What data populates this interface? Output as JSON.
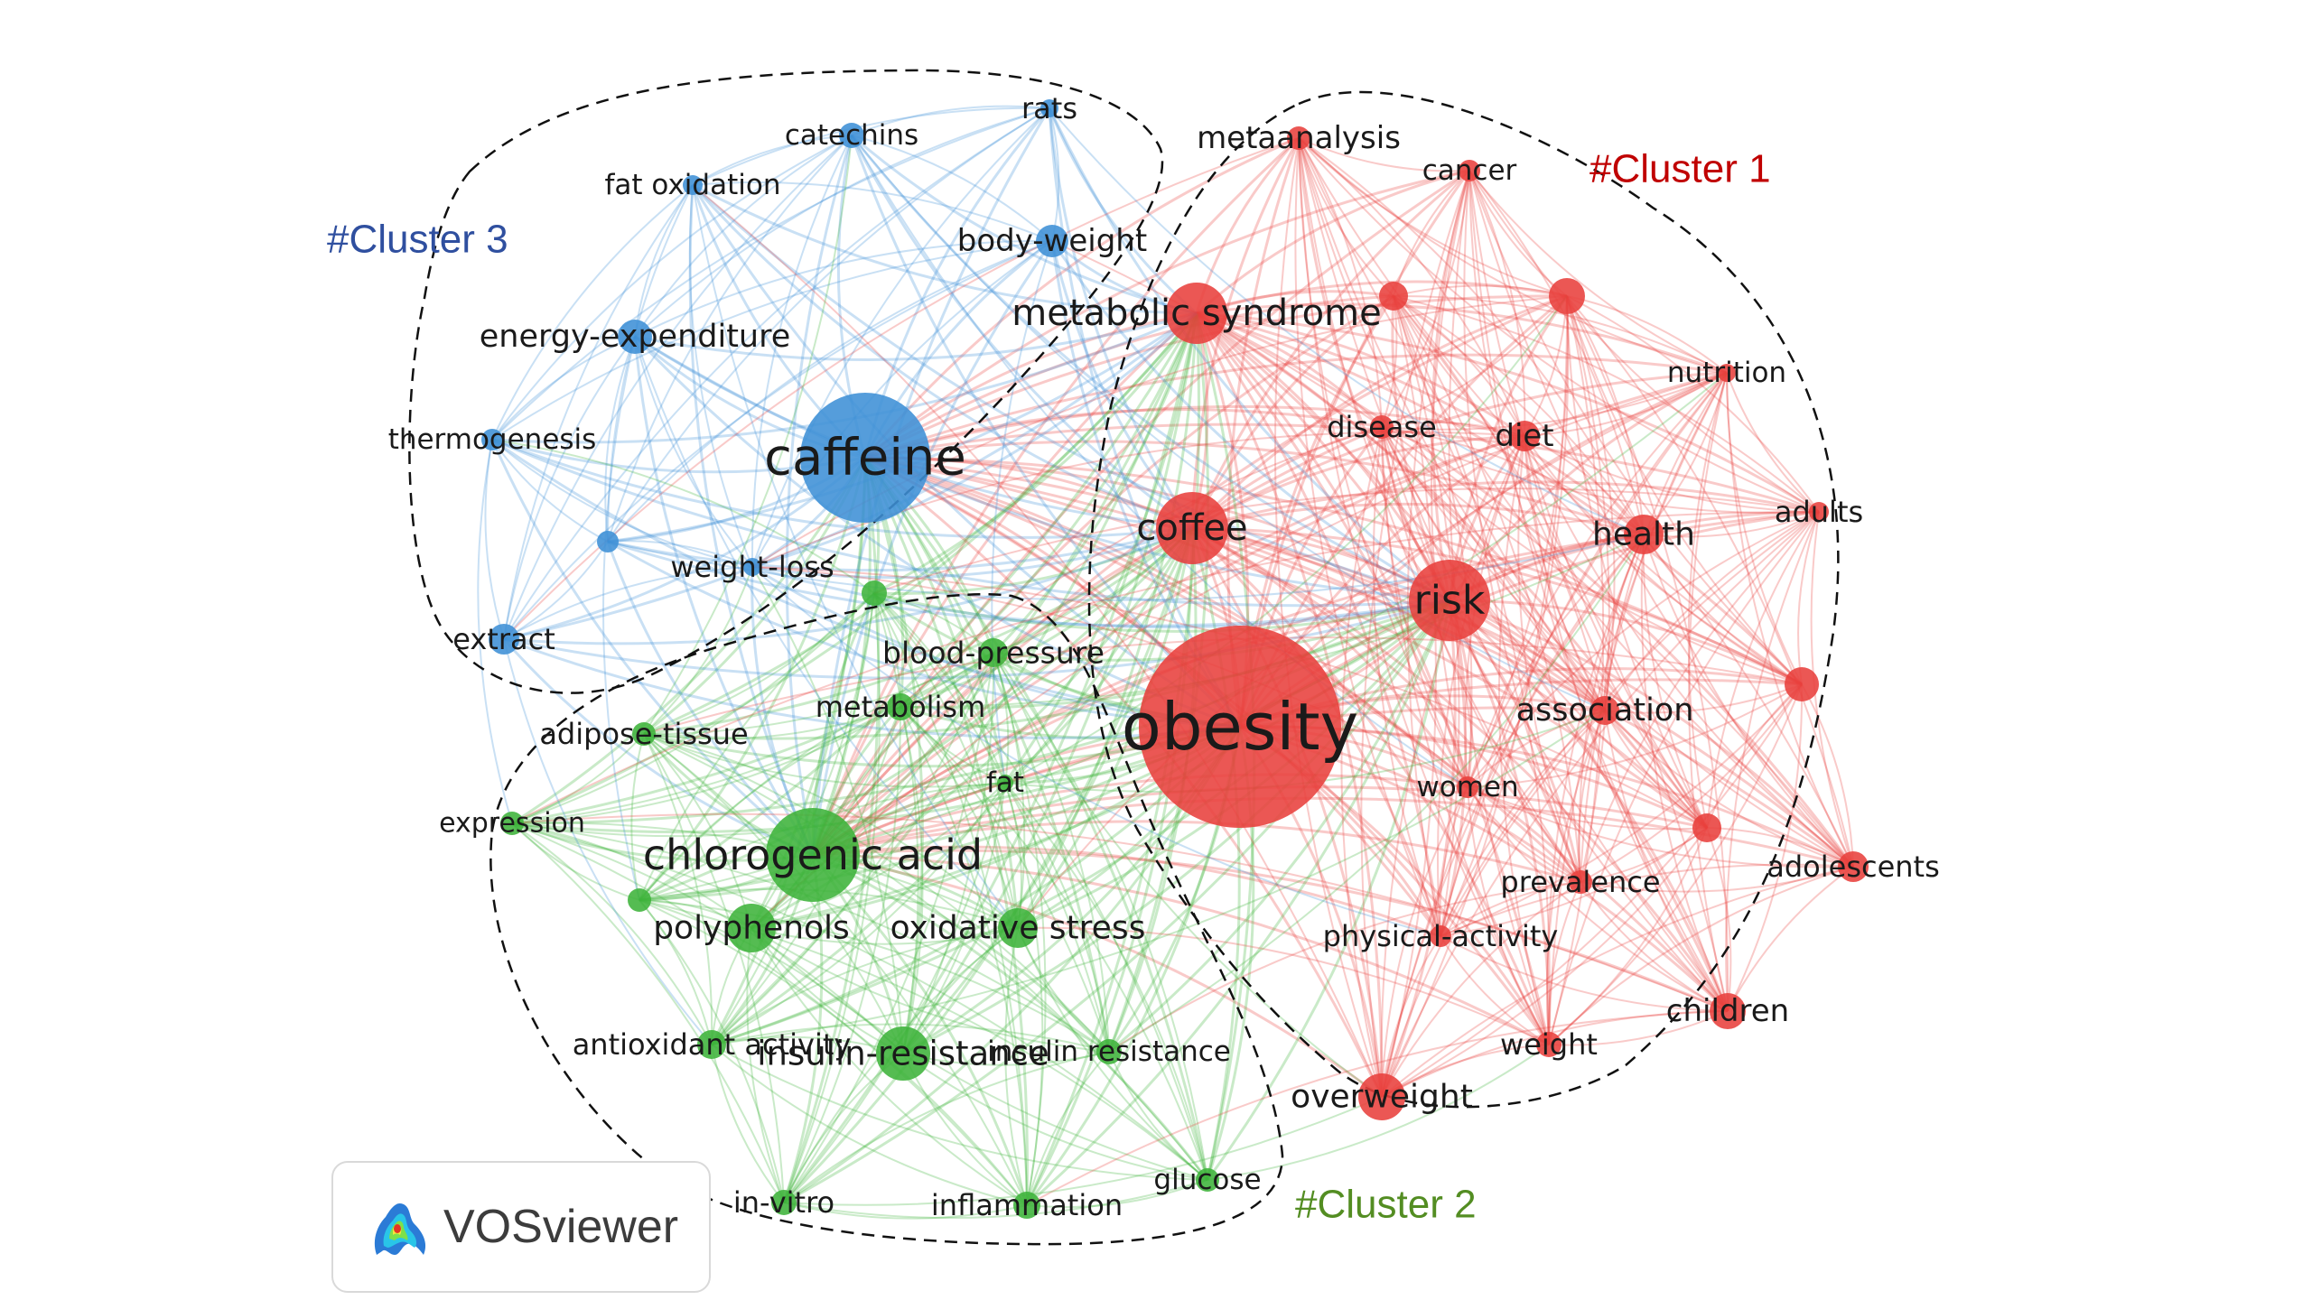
{
  "brand": {
    "name": "VOSviewer",
    "icon": "vosviewer-heatmap-logo-icon"
  },
  "colors": {
    "cluster1": "#e8403c",
    "cluster2": "#3db33a",
    "cluster3": "#3d8fd6",
    "cluster1_label": "#c00000",
    "cluster2_label": "#538d22",
    "cluster3_label": "#2f4f9f"
  },
  "clusters": [
    {
      "id": "c1",
      "label": "#Cluster 1",
      "color": "#c00000"
    },
    {
      "id": "c2",
      "label": "#Cluster 2",
      "color": "#538d22"
    },
    {
      "id": "c3",
      "label": "#Cluster 3",
      "color": "#2f4f9f"
    }
  ],
  "nodes": [
    {
      "id": "obesity",
      "label": "obesity",
      "cluster": 1,
      "weight": 100
    },
    {
      "id": "risk",
      "label": "risk",
      "cluster": 1,
      "weight": 30
    },
    {
      "id": "coffee",
      "label": "coffee",
      "cluster": 1,
      "weight": 26
    },
    {
      "id": "metabolic-syndrome",
      "label": "metabolic syndrome",
      "cluster": 1,
      "weight": 24
    },
    {
      "id": "health",
      "label": "health",
      "cluster": 1,
      "weight": 12
    },
    {
      "id": "diet",
      "label": "diet",
      "cluster": 1,
      "weight": 9
    },
    {
      "id": "disease",
      "label": "disease",
      "cluster": 1,
      "weight": 8
    },
    {
      "id": "metaanalysis",
      "label": "metaanalysis",
      "cluster": 1,
      "weight": 7
    },
    {
      "id": "cancer",
      "label": "cancer",
      "cluster": 1,
      "weight": 6
    },
    {
      "id": "nutrition",
      "label": "nutrition",
      "cluster": 1,
      "weight": 5
    },
    {
      "id": "adults",
      "label": "adults",
      "cluster": 1,
      "weight": 5
    },
    {
      "id": "association",
      "label": "association",
      "cluster": 1,
      "weight": 9
    },
    {
      "id": "women",
      "label": "women",
      "cluster": 1,
      "weight": 6
    },
    {
      "id": "prevalence",
      "label": "prevalence",
      "cluster": 1,
      "weight": 7
    },
    {
      "id": "adolescents",
      "label": "adolescents",
      "cluster": 1,
      "weight": 8
    },
    {
      "id": "physical-activity",
      "label": "physical-activity",
      "cluster": 1,
      "weight": 7
    },
    {
      "id": "weight",
      "label": "weight",
      "cluster": 1,
      "weight": 7
    },
    {
      "id": "children",
      "label": "children",
      "cluster": 1,
      "weight": 10
    },
    {
      "id": "overweight",
      "label": "overweight",
      "cluster": 1,
      "weight": 14
    },
    {
      "id": "unlabeled-1",
      "label": "",
      "cluster": 1,
      "weight": 10
    },
    {
      "id": "unlabeled-2",
      "label": "",
      "cluster": 1,
      "weight": 8
    },
    {
      "id": "unlabeled-3",
      "label": "",
      "cluster": 1,
      "weight": 7
    },
    {
      "id": "unlabeled-4",
      "label": "",
      "cluster": 1,
      "weight": 7
    },
    {
      "id": "chlorogenic-acid",
      "label": "chlorogenic acid",
      "cluster": 2,
      "weight": 40
    },
    {
      "id": "polyphenols",
      "label": "polyphenols",
      "cluster": 2,
      "weight": 14
    },
    {
      "id": "oxidative-stress",
      "label": "oxidative stress",
      "cluster": 2,
      "weight": 11
    },
    {
      "id": "insulin-resistance-hyphen",
      "label": "insulin-resistance",
      "cluster": 2,
      "weight": 16
    },
    {
      "id": "insulin-resistance",
      "label": "insulin resistance",
      "cluster": 2,
      "weight": 5
    },
    {
      "id": "antioxidant-activity",
      "label": "antioxidant activity",
      "cluster": 2,
      "weight": 6
    },
    {
      "id": "in-vitro",
      "label": "in-vitro",
      "cluster": 2,
      "weight": 6
    },
    {
      "id": "inflammation",
      "label": "inflammation",
      "cluster": 2,
      "weight": 7
    },
    {
      "id": "glucose",
      "label": "glucose",
      "cluster": 2,
      "weight": 6
    },
    {
      "id": "expression",
      "label": "expression",
      "cluster": 2,
      "weight": 5
    },
    {
      "id": "adipose-tissue",
      "label": "adipose-tissue",
      "cluster": 2,
      "weight": 6
    },
    {
      "id": "metabolism",
      "label": "metabolism",
      "cluster": 2,
      "weight": 8
    },
    {
      "id": "fat",
      "label": "fat",
      "cluster": 2,
      "weight": 4
    },
    {
      "id": "blood-pressure",
      "label": "blood-pressure",
      "cluster": 2,
      "weight": 6
    },
    {
      "id": "unlabeled-5",
      "label": "",
      "cluster": 2,
      "weight": 5
    },
    {
      "id": "unlabeled-6",
      "label": "",
      "cluster": 2,
      "weight": 5
    },
    {
      "id": "caffeine",
      "label": "caffeine",
      "cluster": 3,
      "weight": 55
    },
    {
      "id": "body-weight",
      "label": "body-weight",
      "cluster": 3,
      "weight": 7
    },
    {
      "id": "rats",
      "label": "rats",
      "cluster": 3,
      "weight": 5
    },
    {
      "id": "catechins",
      "label": "catechins",
      "cluster": 3,
      "weight": 5
    },
    {
      "id": "fat-oxidation",
      "label": "fat oxidation",
      "cluster": 3,
      "weight": 5
    },
    {
      "id": "energy-expenditure",
      "label": "energy-expenditure",
      "cluster": 3,
      "weight": 8
    },
    {
      "id": "thermogenesis",
      "label": "thermogenesis",
      "cluster": 3,
      "weight": 5
    },
    {
      "id": "weight-loss",
      "label": "weight-loss",
      "cluster": 3,
      "weight": 5
    },
    {
      "id": "extract",
      "label": "extract",
      "cluster": 3,
      "weight": 6
    },
    {
      "id": "unlabeled-7",
      "label": "",
      "cluster": 3,
      "weight": 4
    }
  ]
}
